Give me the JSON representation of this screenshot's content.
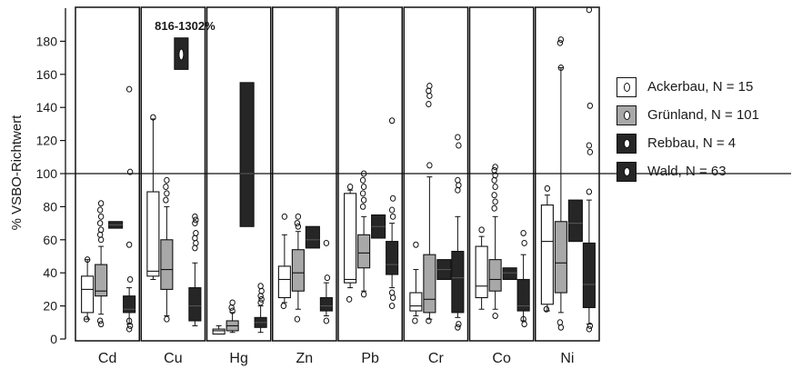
{
  "chart_data": {
    "type": "box",
    "ylabel": "% VSBO-Richtwert",
    "ylim": [
      0,
      200
    ],
    "yticks": [
      0,
      20,
      40,
      60,
      80,
      100,
      120,
      140,
      160,
      180
    ],
    "reference_line": 100,
    "grid": false,
    "legend_position": "right",
    "annotation": {
      "text": "816-1302%",
      "category": "Cu"
    },
    "categories": [
      "Cd",
      "Cu",
      "Hg",
      "Zn",
      "Pb",
      "Cr",
      "Co",
      "Ni"
    ],
    "series": [
      {
        "name": "Ackerbau, N = 15",
        "color": "#ffffff",
        "boxes": [
          {
            "min": 12,
            "q1": 16,
            "median": 30,
            "q3": 38,
            "max": 48,
            "outliers": [
              48,
              12
            ]
          },
          {
            "min": 36,
            "q1": 38,
            "median": 41,
            "q3": 89,
            "max": 133,
            "outliers": [
              134
            ]
          },
          {
            "min": 3,
            "q1": 3,
            "median": 5,
            "q3": 6,
            "max": 8,
            "outliers": []
          },
          {
            "min": 22,
            "q1": 25,
            "median": 36,
            "q3": 44,
            "max": 63,
            "outliers": [
              74,
              20
            ]
          },
          {
            "min": 31,
            "q1": 34,
            "median": 36,
            "q3": 88,
            "max": 90,
            "outliers": [
              92,
              24
            ]
          },
          {
            "min": 14,
            "q1": 17,
            "median": 20,
            "q3": 28,
            "max": 42,
            "outliers": [
              57,
              11
            ]
          },
          {
            "min": 18,
            "q1": 25,
            "median": 32,
            "q3": 56,
            "max": 62,
            "outliers": [
              66
            ]
          },
          {
            "min": 17,
            "q1": 21,
            "median": 59,
            "q3": 81,
            "max": 87,
            "outliers": [
              91,
              18
            ]
          }
        ]
      },
      {
        "name": "Grünland, N = 101",
        "color": "#a8a8a8",
        "boxes": [
          {
            "min": 15,
            "q1": 26,
            "median": 29,
            "q3": 45,
            "max": 56,
            "outliers": [
              82,
              78,
              74,
              70,
              66,
              63,
              60,
              11,
              9
            ]
          },
          {
            "min": 14,
            "q1": 30,
            "median": 42,
            "q3": 60,
            "max": 80,
            "outliers": [
              96,
              92,
              88,
              84,
              12
            ]
          },
          {
            "min": 4,
            "q1": 5,
            "median": 8,
            "q3": 11,
            "max": 16,
            "outliers": [
              22,
              19,
              17
            ]
          },
          {
            "min": 18,
            "q1": 29,
            "median": 40,
            "q3": 54,
            "max": 65,
            "outliers": [
              74,
              70,
              68,
              12
            ]
          },
          {
            "min": 29,
            "q1": 43,
            "median": 52,
            "q3": 63,
            "max": 74,
            "outliers": [
              100,
              96,
              92,
              88,
              84,
              80,
              27
            ]
          },
          {
            "min": 12,
            "q1": 16,
            "median": 24,
            "q3": 51,
            "max": 98,
            "outliers": [
              153,
              150,
              147,
              142,
              105,
              11
            ]
          },
          {
            "min": 18,
            "q1": 29,
            "median": 36,
            "q3": 48,
            "max": 74,
            "outliers": [
              104,
              102,
              99,
              96,
              92,
              87,
              83,
              79,
              14
            ]
          },
          {
            "min": 16,
            "q1": 28,
            "median": 46,
            "q3": 71,
            "max": 164,
            "outliers": [
              181,
              179,
              164,
              10,
              7
            ]
          }
        ]
      },
      {
        "name": "Rebbau, N = 4",
        "color": "#262626",
        "boxes": [
          {
            "min": 67,
            "q1": 67,
            "median": 69,
            "q3": 71,
            "max": 71,
            "outliers": []
          },
          {
            "min": 163,
            "q1": 163,
            "median": 172,
            "q3": 182,
            "max": 182,
            "outliers": [],
            "broken_axis": true
          },
          {
            "min": 68,
            "q1": 68,
            "median": 100,
            "q3": 155,
            "max": 155,
            "outliers": []
          },
          {
            "min": 55,
            "q1": 55,
            "median": 60,
            "q3": 68,
            "max": 68,
            "outliers": []
          },
          {
            "min": 61,
            "q1": 61,
            "median": 68,
            "q3": 75,
            "max": 75,
            "outliers": []
          },
          {
            "min": 36,
            "q1": 36,
            "median": 42,
            "q3": 48,
            "max": 48,
            "outliers": []
          },
          {
            "min": 36,
            "q1": 36,
            "median": 40,
            "q3": 43,
            "max": 43,
            "outliers": []
          },
          {
            "min": 59,
            "q1": 59,
            "median": 70,
            "q3": 84,
            "max": 84,
            "outliers": []
          }
        ]
      },
      {
        "name": "Wald, N = 63",
        "color": "#262626",
        "boxes": [
          {
            "min": 9,
            "q1": 16,
            "median": 18,
            "q3": 26,
            "max": 31,
            "outliers": [
              151,
              101,
              57,
              36,
              11,
              8,
              6
            ]
          },
          {
            "min": 8,
            "q1": 11,
            "median": 20,
            "q3": 31,
            "max": 46,
            "outliers": [
              74,
              72,
              70,
              64,
              61,
              58,
              55
            ]
          },
          {
            "min": 4,
            "q1": 7,
            "median": 10,
            "q3": 13,
            "max": 20,
            "outliers": [
              32,
              29,
              26,
              24,
              22
            ]
          },
          {
            "min": 14,
            "q1": 17,
            "median": 20,
            "q3": 25,
            "max": 34,
            "outliers": [
              58,
              37,
              11
            ]
          },
          {
            "min": 31,
            "q1": 39,
            "median": 45,
            "q3": 59,
            "max": 70,
            "outliers": [
              132,
              85,
              78,
              74,
              28,
              25,
              20
            ]
          },
          {
            "min": 13,
            "q1": 16,
            "median": 37,
            "q3": 53,
            "max": 74,
            "outliers": [
              122,
              117,
              96,
              93,
              90,
              9,
              7
            ]
          },
          {
            "min": 11,
            "q1": 17,
            "median": 20,
            "q3": 36,
            "max": 51,
            "outliers": [
              64,
              58,
              12,
              9
            ]
          },
          {
            "min": 9,
            "q1": 19,
            "median": 33,
            "q3": 58,
            "max": 84,
            "outliers": [
              199,
              141,
              117,
              113,
              89,
              8,
              6
            ]
          }
        ]
      }
    ]
  }
}
